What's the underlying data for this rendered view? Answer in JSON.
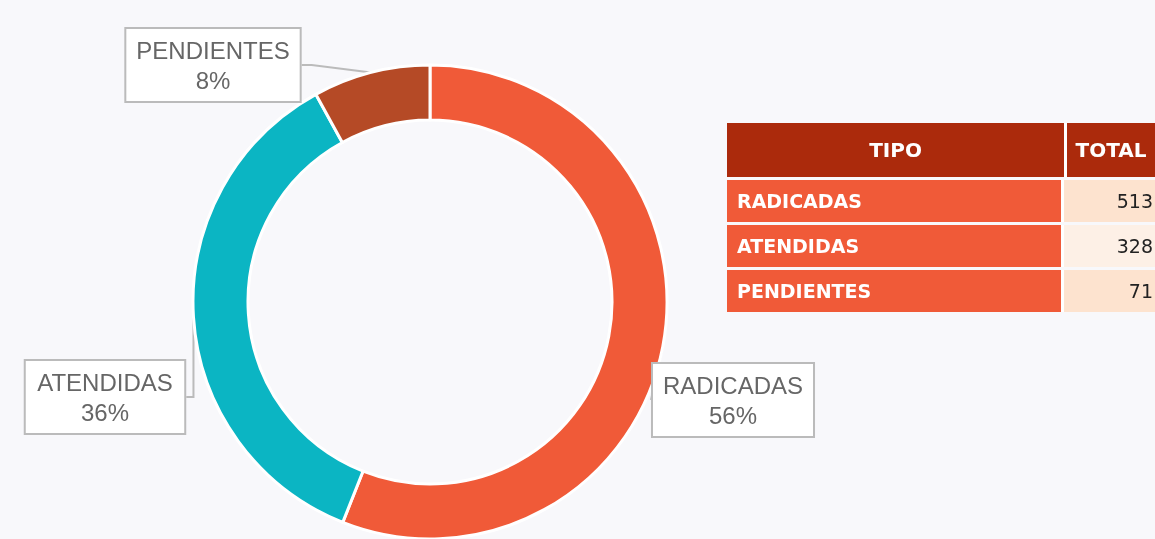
{
  "chart_data": {
    "type": "donut",
    "categories": [
      "RADICADAS",
      "ATENDIDAS",
      "PENDIENTES"
    ],
    "values": [
      56,
      36,
      8
    ],
    "colors": [
      "#f05a38",
      "#0bb5c3",
      "#b54a26"
    ],
    "value_labels": [
      "56%",
      "36%",
      "8%"
    ],
    "annotations": [
      "TIPO",
      "TOTAL",
      "513",
      "328",
      "71"
    ],
    "legend": false
  }
}
